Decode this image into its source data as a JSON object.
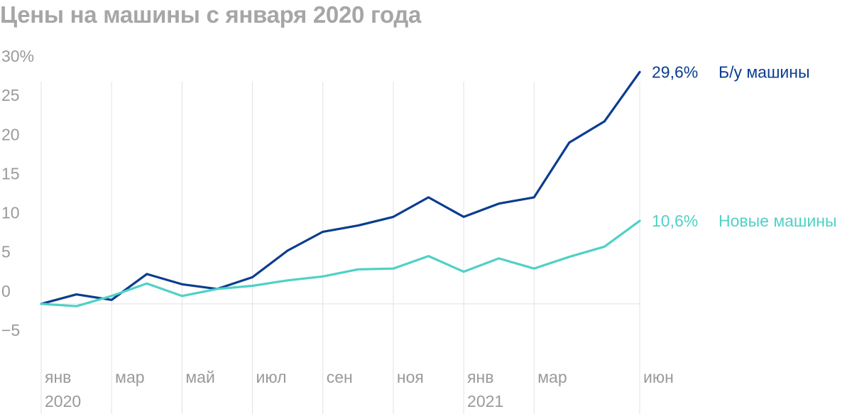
{
  "chart_data": {
    "type": "line",
    "title": "Цены на машины с января 2020 года",
    "x": [
      "2020-01",
      "2020-02",
      "2020-03",
      "2020-04",
      "2020-05",
      "2020-06",
      "2020-07",
      "2020-08",
      "2020-09",
      "2020-10",
      "2020-11",
      "2020-12",
      "2021-01",
      "2021-02",
      "2021-03",
      "2021-04",
      "2021-05",
      "2021-06"
    ],
    "y_ticks": [
      {
        "value": 30,
        "label": "30%"
      },
      {
        "value": 25,
        "label": "25"
      },
      {
        "value": 20,
        "label": "20"
      },
      {
        "value": 15,
        "label": "15"
      },
      {
        "value": 10,
        "label": "10"
      },
      {
        "value": 5,
        "label": "5"
      },
      {
        "value": 0,
        "label": "0"
      },
      {
        "value": -5,
        "label": "−5"
      }
    ],
    "x_ticks": [
      {
        "x": "2020-01",
        "label": "янв",
        "year": "2020"
      },
      {
        "x": "2020-03",
        "label": "мар",
        "year": ""
      },
      {
        "x": "2020-05",
        "label": "май",
        "year": ""
      },
      {
        "x": "2020-07",
        "label": "июл",
        "year": ""
      },
      {
        "x": "2020-09",
        "label": "сен",
        "year": ""
      },
      {
        "x": "2020-11",
        "label": "ноя",
        "year": ""
      },
      {
        "x": "2021-01",
        "label": "янв",
        "year": "2021"
      },
      {
        "x": "2021-03",
        "label": "мар",
        "year": ""
      },
      {
        "x": "2021-06",
        "label": "июн",
        "year": ""
      }
    ],
    "ylim": [
      -5,
      30
    ],
    "grid": "vertical lines at labeled months",
    "series": [
      {
        "name": "Б/у машины",
        "end_label": "29,6%",
        "color": "#0a3d8f",
        "values": [
          0,
          1.2,
          0.5,
          3.8,
          2.5,
          1.9,
          3.4,
          6.8,
          9.2,
          10.0,
          11.1,
          13.6,
          11.1,
          12.8,
          13.6,
          20.6,
          23.3,
          29.6
        ]
      },
      {
        "name": "Новые машины",
        "end_label": "10,6%",
        "color": "#4fd1c5",
        "values": [
          0,
          -0.3,
          1.0,
          2.6,
          1.0,
          1.9,
          2.3,
          3.0,
          3.5,
          4.4,
          4.5,
          6.1,
          4.1,
          5.8,
          4.5,
          6.0,
          7.3,
          10.6
        ]
      }
    ]
  }
}
